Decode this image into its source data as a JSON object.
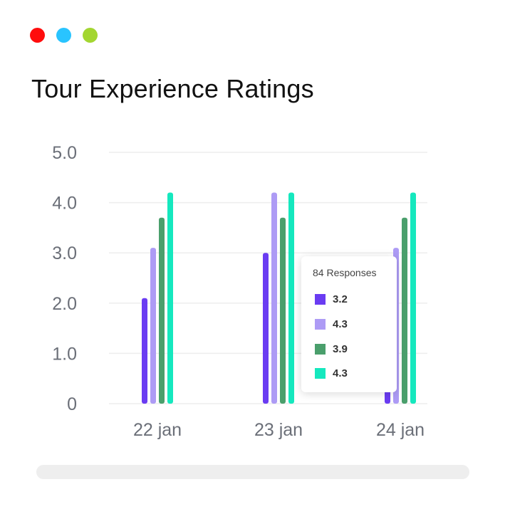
{
  "window_controls": [
    {
      "name": "close",
      "color": "#ff0d0d"
    },
    {
      "name": "minimize",
      "color": "#29c4ff"
    },
    {
      "name": "maximize",
      "color": "#a3d631"
    }
  ],
  "chart_data": {
    "type": "bar",
    "title": "Tour Experience Ratings",
    "xlabel": "",
    "ylabel": "",
    "ylim": [
      0,
      5
    ],
    "yticks": [
      "0",
      "1.0",
      "2.0",
      "3.0",
      "4.0",
      "5.0"
    ],
    "grid": true,
    "categories": [
      "22 jan",
      "23 jan",
      "24 jan"
    ],
    "series": [
      {
        "color": "#6a3cf2",
        "values": [
          2.1,
          3.0,
          0.3
        ]
      },
      {
        "color": "#ad9bf5",
        "values": [
          3.1,
          4.2,
          3.1
        ]
      },
      {
        "color": "#4a9f6c",
        "values": [
          3.7,
          3.7,
          3.7
        ]
      },
      {
        "color": "#15e8be",
        "values": [
          4.2,
          4.2,
          4.2
        ]
      }
    ]
  },
  "tooltip": {
    "title": "84 Responses",
    "items": [
      {
        "value": "3.2",
        "color": "#6a3cf2"
      },
      {
        "value": "4.3",
        "color": "#ad9bf5"
      },
      {
        "value": "3.9",
        "color": "#4a9f6c"
      },
      {
        "value": "4.3",
        "color": "#15e8be"
      }
    ]
  }
}
